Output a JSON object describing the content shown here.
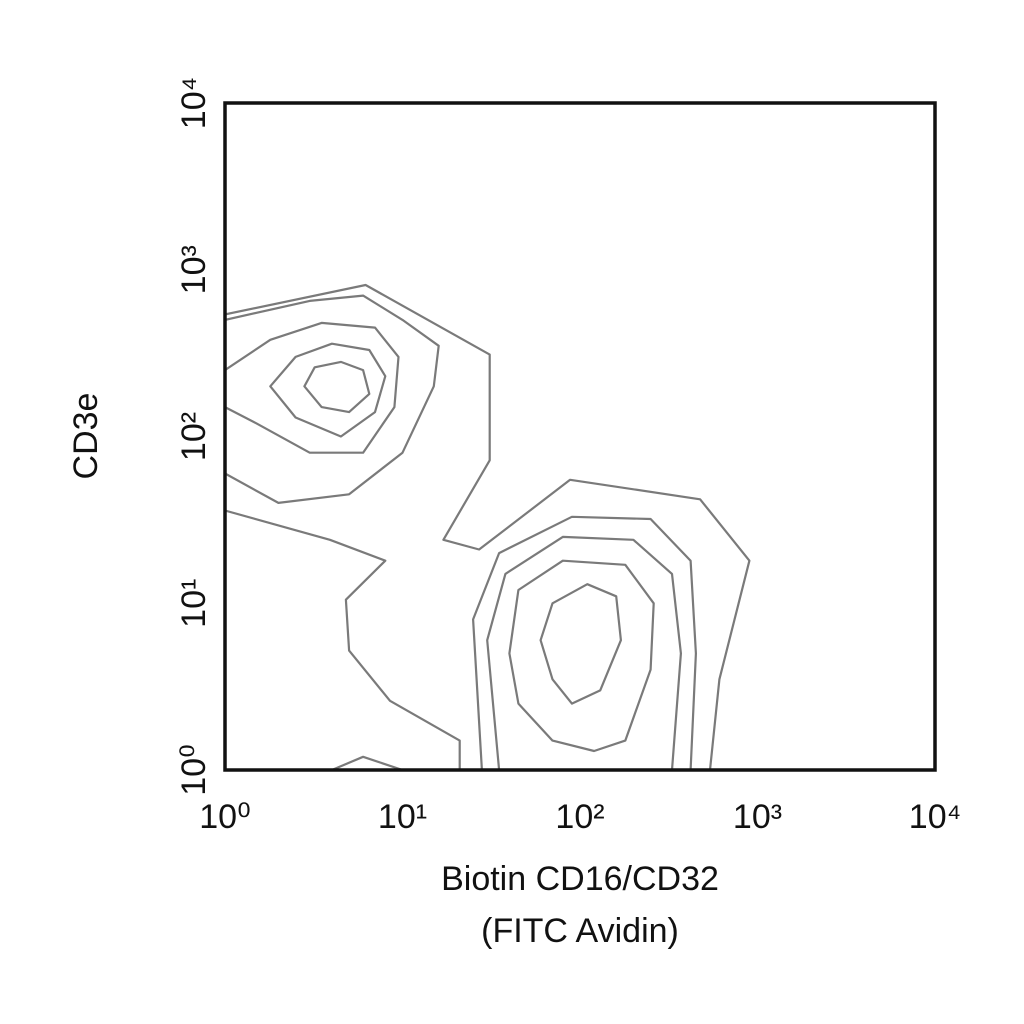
{
  "chart_data": {
    "type": "contour",
    "xlabel": [
      "Biotin CD16/CD32",
      "(FITC Avidin)"
    ],
    "ylabel": "CD3e",
    "xscale": "log",
    "yscale": "log",
    "xlim": [
      1,
      10000
    ],
    "ylim": [
      1,
      10000
    ],
    "xticks": [
      {
        "value": 1,
        "label": "10⁰"
      },
      {
        "value": 10,
        "label": "10¹"
      },
      {
        "value": 100,
        "label": "10²"
      },
      {
        "value": 1000,
        "label": "10³"
      },
      {
        "value": 10000,
        "label": "10⁴"
      }
    ],
    "yticks": [
      {
        "value": 1,
        "label": "10⁰"
      },
      {
        "value": 10,
        "label": "10¹"
      },
      {
        "value": 100,
        "label": "10²"
      },
      {
        "value": 1000,
        "label": "10³"
      },
      {
        "value": 10000,
        "label": "10⁴"
      }
    ],
    "grid": false,
    "color": "#7a7a7a",
    "contours": [
      {
        "closed": true,
        "x": [
          2.8,
          3.2,
          4.5,
          6,
          6.5,
          5,
          3.5
        ],
        "y": [
          200,
          260,
          280,
          250,
          180,
          140,
          150
        ]
      },
      {
        "closed": true,
        "x": [
          1.8,
          2.5,
          4,
          6.5,
          8,
          7,
          4.5,
          2.5
        ],
        "y": [
          200,
          300,
          360,
          330,
          230,
          140,
          100,
          130
        ]
      },
      {
        "closed": false,
        "x": [
          1,
          1.8,
          3.5,
          7,
          9.5,
          9,
          6,
          3,
          1.5,
          1
        ],
        "y": [
          250,
          380,
          480,
          450,
          300,
          150,
          80,
          80,
          120,
          150
        ]
      },
      {
        "closed": false,
        "x": [
          1,
          3,
          6,
          10,
          16,
          15,
          10,
          5,
          2,
          1
        ],
        "y": [
          500,
          650,
          700,
          500,
          350,
          200,
          80,
          45,
          40,
          60
        ]
      },
      {
        "closed": false,
        "x": [
          1,
          6.2,
          31,
          31,
          17,
          27,
          88,
          475,
          900,
          610,
          540
        ],
        "y": [
          540,
          810,
          310,
          72,
          24,
          21,
          55,
          42,
          18,
          3.5,
          1
        ]
      },
      {
        "closed": false,
        "x": [
          1,
          3.9,
          8,
          4.8,
          5,
          8.5,
          21,
          21
        ],
        "y": [
          36,
          24,
          18,
          10.5,
          5.2,
          2.6,
          1.5,
          1
        ]
      },
      {
        "closed": true,
        "x": [
          60,
          70,
          110,
          160,
          170,
          130,
          90,
          70
        ],
        "y": [
          6,
          10,
          13,
          11,
          6,
          3,
          2.5,
          3.5
        ]
      },
      {
        "closed": true,
        "x": [
          40,
          45,
          80,
          180,
          260,
          250,
          180,
          120,
          70,
          45
        ],
        "y": [
          5,
          12,
          18,
          17,
          10,
          4,
          1.5,
          1.3,
          1.5,
          2.5
        ]
      },
      {
        "closed": false,
        "x": [
          35,
          30,
          38,
          80,
          200,
          330,
          370,
          330
        ],
        "y": [
          1,
          6,
          15,
          25,
          24,
          15,
          5,
          1
        ]
      },
      {
        "closed": false,
        "x": [
          28,
          25,
          35,
          90,
          250,
          420,
          450,
          420
        ],
        "y": [
          1,
          8,
          20,
          33,
          32,
          18,
          5,
          1
        ]
      },
      {
        "closed": false,
        "x": [
          4,
          6,
          10
        ],
        "y": [
          1,
          1.2,
          1
        ]
      }
    ]
  }
}
